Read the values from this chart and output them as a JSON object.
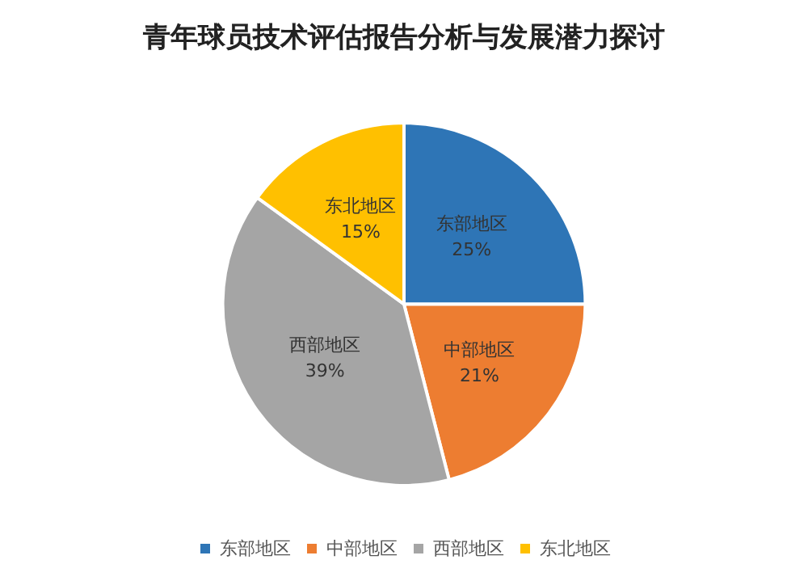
{
  "chart_data": {
    "type": "pie",
    "title": "青年球员技术评估报告分析与发展潜力探讨",
    "categories": [
      "东部地区",
      "中部地区",
      "西部地区",
      "东北地区"
    ],
    "values": [
      25,
      21,
      39,
      15
    ],
    "colors": [
      "#2e75b6",
      "#ed7d31",
      "#a5a5a5",
      "#ffc000"
    ],
    "value_labels": [
      "25%",
      "21%",
      "39%",
      "15%"
    ],
    "legend": "bottom"
  }
}
